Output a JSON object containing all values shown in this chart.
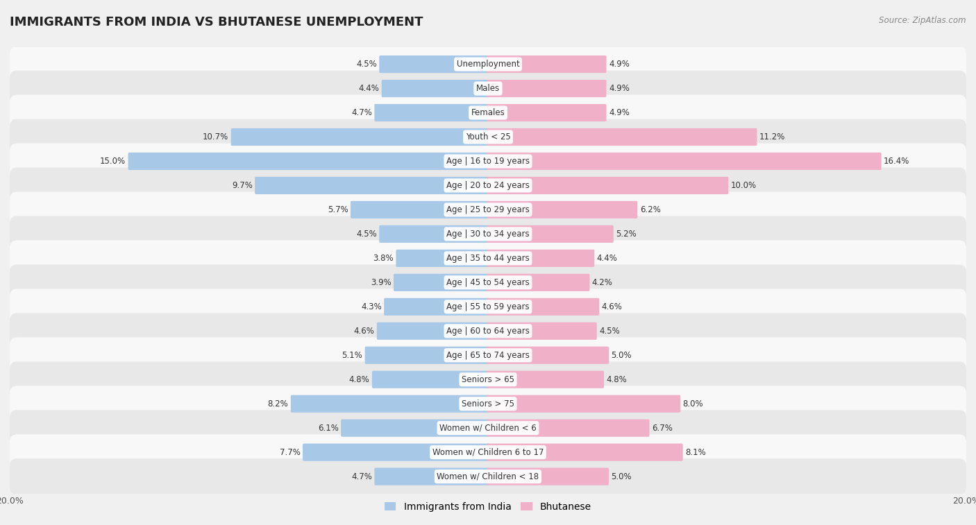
{
  "title": "IMMIGRANTS FROM INDIA VS BHUTANESE UNEMPLOYMENT",
  "source": "Source: ZipAtlas.com",
  "categories": [
    "Unemployment",
    "Males",
    "Females",
    "Youth < 25",
    "Age | 16 to 19 years",
    "Age | 20 to 24 years",
    "Age | 25 to 29 years",
    "Age | 30 to 34 years",
    "Age | 35 to 44 years",
    "Age | 45 to 54 years",
    "Age | 55 to 59 years",
    "Age | 60 to 64 years",
    "Age | 65 to 74 years",
    "Seniors > 65",
    "Seniors > 75",
    "Women w/ Children < 6",
    "Women w/ Children 6 to 17",
    "Women w/ Children < 18"
  ],
  "india_values": [
    4.5,
    4.4,
    4.7,
    10.7,
    15.0,
    9.7,
    5.7,
    4.5,
    3.8,
    3.9,
    4.3,
    4.6,
    5.1,
    4.8,
    8.2,
    6.1,
    7.7,
    4.7
  ],
  "bhutan_values": [
    4.9,
    4.9,
    4.9,
    11.2,
    16.4,
    10.0,
    6.2,
    5.2,
    4.4,
    4.2,
    4.6,
    4.5,
    5.0,
    4.8,
    8.0,
    6.7,
    8.1,
    5.0
  ],
  "india_color": "#a8c8e8",
  "bhutan_color": "#f0b0c8",
  "india_label": "Immigrants from India",
  "bhutan_label": "Bhutanese",
  "axis_max": 20.0,
  "bar_height": 0.62,
  "bg_color": "#f0f0f0",
  "row_light": "#f8f8f8",
  "row_dark": "#e8e8e8",
  "title_fontsize": 13,
  "label_fontsize": 8.5,
  "value_fontsize": 8.5,
  "legend_fontsize": 10
}
